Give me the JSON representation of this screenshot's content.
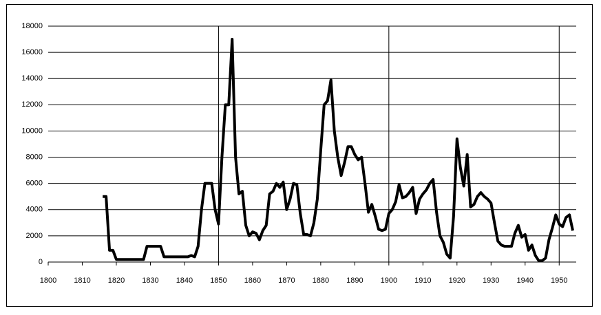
{
  "chart_data": {
    "type": "line",
    "x": [
      1816,
      1817,
      1818,
      1819,
      1820,
      1821,
      1822,
      1823,
      1824,
      1825,
      1826,
      1827,
      1828,
      1829,
      1830,
      1831,
      1832,
      1833,
      1834,
      1835,
      1836,
      1837,
      1838,
      1839,
      1840,
      1841,
      1842,
      1843,
      1844,
      1845,
      1846,
      1847,
      1848,
      1849,
      1850,
      1851,
      1852,
      1853,
      1854,
      1855,
      1856,
      1857,
      1858,
      1859,
      1860,
      1861,
      1862,
      1863,
      1864,
      1865,
      1866,
      1867,
      1868,
      1869,
      1870,
      1871,
      1872,
      1873,
      1874,
      1875,
      1876,
      1877,
      1878,
      1879,
      1880,
      1881,
      1882,
      1883,
      1884,
      1885,
      1886,
      1887,
      1888,
      1889,
      1890,
      1891,
      1892,
      1893,
      1894,
      1895,
      1896,
      1897,
      1898,
      1899,
      1900,
      1901,
      1902,
      1903,
      1904,
      1905,
      1906,
      1907,
      1908,
      1909,
      1910,
      1911,
      1912,
      1913,
      1914,
      1915,
      1916,
      1917,
      1918,
      1919,
      1920,
      1921,
      1922,
      1923,
      1924,
      1925,
      1926,
      1927,
      1928,
      1929,
      1930,
      1931,
      1932,
      1933,
      1934,
      1935,
      1936,
      1937,
      1938,
      1939,
      1940,
      1941,
      1942,
      1943,
      1944,
      1945,
      1946,
      1947,
      1948,
      1949,
      1950,
      1951,
      1952,
      1953,
      1954
    ],
    "series": [
      {
        "color": "#000000",
        "values": [
          5000,
          5000,
          900,
          900,
          200,
          200,
          200,
          200,
          200,
          200,
          200,
          200,
          200,
          1200,
          1200,
          1200,
          1200,
          1200,
          400,
          400,
          400,
          400,
          400,
          400,
          400,
          400,
          500,
          400,
          1200,
          4000,
          6000,
          6000,
          6000,
          4000,
          2900,
          8000,
          12000,
          12000,
          17000,
          8000,
          5200,
          5400,
          2800,
          2000,
          2300,
          2200,
          1700,
          2400,
          2800,
          5200,
          5400,
          6000,
          5700,
          6100,
          4000,
          4800,
          6000,
          5900,
          3700,
          2100,
          2100,
          2000,
          3000,
          4800,
          8500,
          12000,
          12300,
          13900,
          10000,
          8000,
          6600,
          7600,
          8800,
          8800,
          8200,
          7800,
          8000,
          6000,
          3800,
          4400,
          3500,
          2500,
          2400,
          2500,
          3700,
          4000,
          4600,
          5900,
          4900,
          5000,
          5300,
          5700,
          3700,
          4800,
          5200,
          5500,
          6000,
          6300,
          3800,
          2000,
          1500,
          600,
          300,
          3500,
          9400,
          7200,
          5800,
          8200,
          4200,
          4400,
          5000,
          5300,
          5000,
          4800,
          4500,
          3000,
          1600,
          1300,
          1200,
          1200,
          1200,
          2200,
          2800,
          1900,
          2100,
          900,
          1300,
          500,
          100,
          100,
          300,
          1700,
          2600,
          3600,
          2900,
          2700,
          3400,
          3600,
          2400
        ]
      }
    ],
    "xlim": [
      1800,
      1955
    ],
    "ylim": [
      0,
      18000
    ],
    "xticks": [
      1800,
      1810,
      1820,
      1830,
      1840,
      1850,
      1860,
      1870,
      1880,
      1890,
      1900,
      1910,
      1920,
      1930,
      1940,
      1950
    ],
    "yticks": [
      0,
      2000,
      4000,
      6000,
      8000,
      10000,
      12000,
      14000,
      16000,
      18000
    ],
    "xgrid": [
      1850,
      1900,
      1950
    ],
    "grid": true
  }
}
